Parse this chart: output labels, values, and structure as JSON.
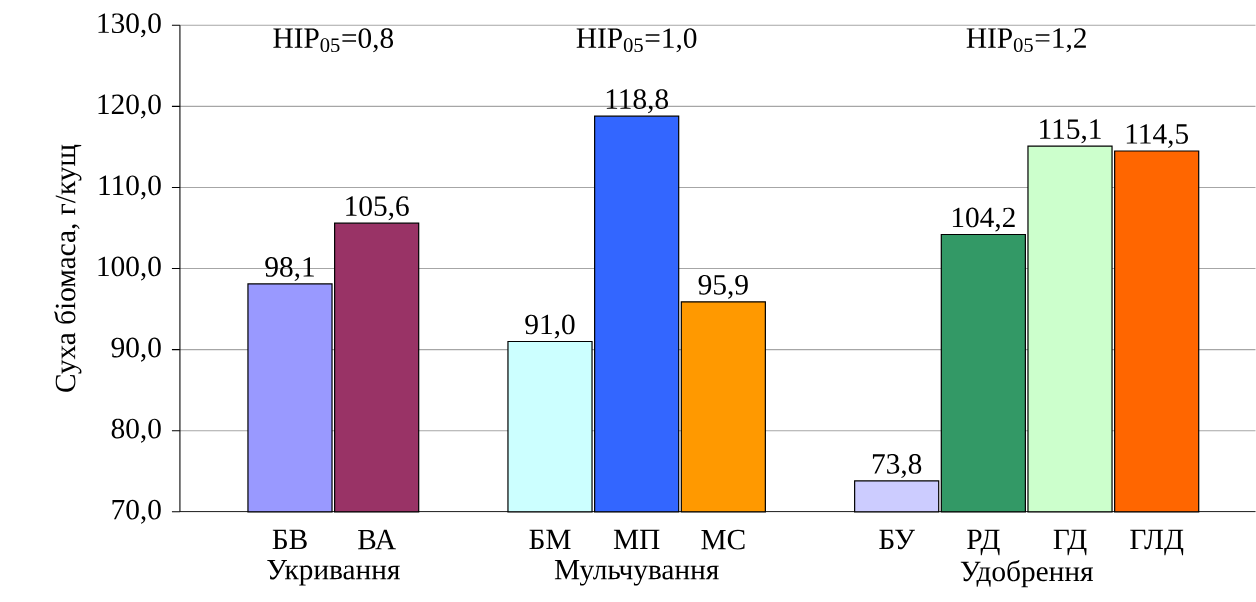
{
  "chart_data": {
    "type": "bar",
    "ylabel": "Суха біомаса, г/кущ",
    "categories": [
      "БВ",
      "ВА",
      null,
      "БМ",
      "МП",
      "МС",
      null,
      "БУ",
      "РД",
      "ГД",
      "ГЛД"
    ],
    "values": [
      98.1,
      105.6,
      null,
      91.0,
      118.8,
      95.9,
      null,
      73.8,
      104.2,
      115.1,
      114.5
    ],
    "value_labels": [
      "98,1",
      "105,6",
      null,
      "91,0",
      "118,8",
      "95,9",
      null,
      "73,8",
      "104,2",
      "115,1",
      "114,5"
    ],
    "colors": [
      "#9999ff",
      "#993366",
      null,
      "#ccffff",
      "#3366ff",
      "#ff9900",
      null,
      "#ccccff",
      "#339966",
      "#ccffcc",
      "#ff6600"
    ],
    "ylim": [
      70,
      130
    ],
    "yticks": [
      {
        "value": 70,
        "label": "70,0"
      },
      {
        "value": 80,
        "label": "80,0"
      },
      {
        "value": 90,
        "label": "90,0"
      },
      {
        "value": 100,
        "label": "100,0"
      },
      {
        "value": 110,
        "label": "110,0"
      },
      {
        "value": 120,
        "label": "120,0"
      },
      {
        "value": 130,
        "label": "130,0"
      }
    ],
    "grid": "y",
    "annotations": [
      "НІР$_{05}$=0,8",
      "НІР$_{05}$=1,0",
      "НІР$_{05}$=1,2",
      "Укривання",
      "Мульчування",
      "Удобрення"
    ]
  }
}
